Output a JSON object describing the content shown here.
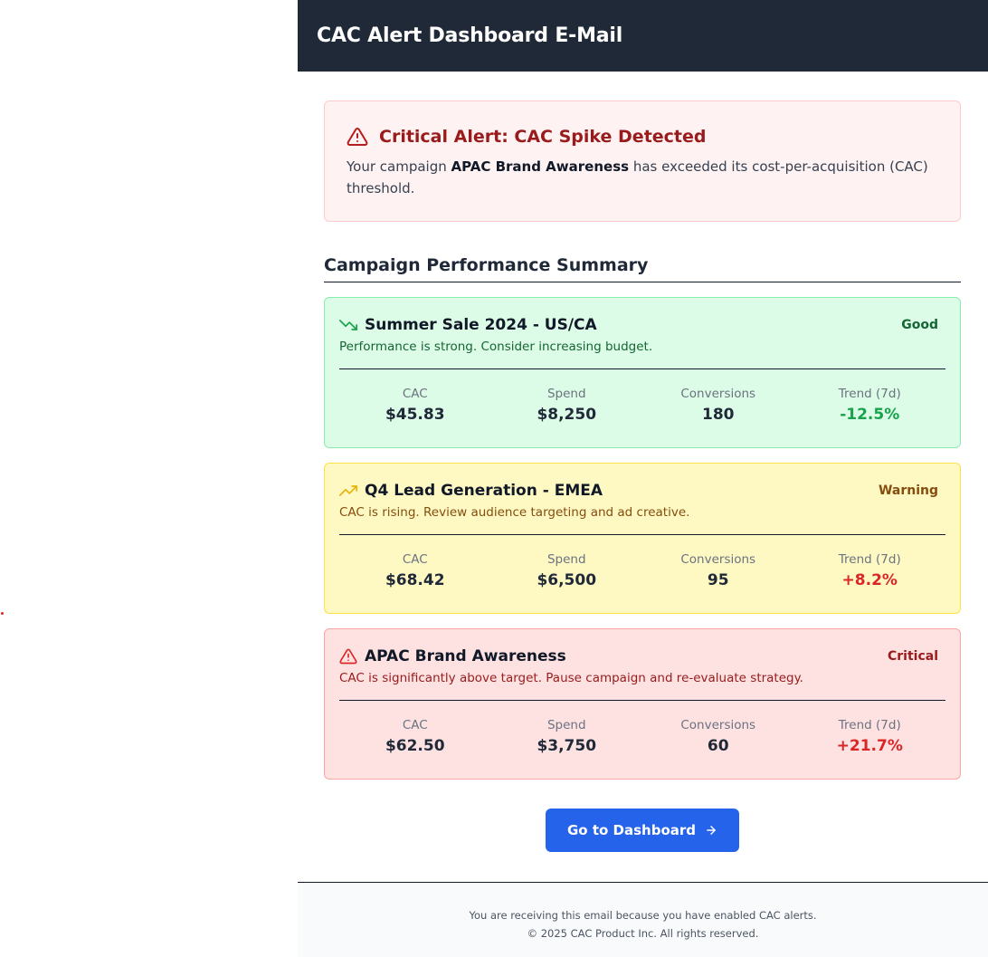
{
  "header": {
    "title": "CAC Alert Dashboard E-Mail"
  },
  "alert": {
    "title": "Critical Alert: CAC Spike Detected",
    "body_prefix": "Your campaign ",
    "campaign": "APAC Brand Awareness",
    "body_suffix": " has exceeded its cost-per-acquisition (CAC) threshold.",
    "icon": "warning-triangle-icon",
    "color": "#991b1b"
  },
  "summary": {
    "title": "Campaign Performance Summary"
  },
  "metric_labels": {
    "cac": "CAC",
    "spend": "Spend",
    "conversions": "Conversions",
    "trend": "Trend (7d)"
  },
  "campaigns": [
    {
      "name": "Summer Sale 2024 - US/CA",
      "status": "Good",
      "description": "Performance is strong. Consider increasing budget.",
      "icon": "trending-down-icon",
      "cac": "$45.83",
      "spend": "$8,250",
      "conversions": "180",
      "trend": "-12.5%",
      "color": "#16a34a"
    },
    {
      "name": "Q4 Lead Generation - EMEA",
      "status": "Warning",
      "description": "CAC is rising. Review audience targeting and ad creative.",
      "icon": "trending-up-icon",
      "cac": "$68.42",
      "spend": "$6,500",
      "conversions": "95",
      "trend": "+8.2%",
      "color": "#eab308"
    },
    {
      "name": "APAC Brand Awareness",
      "status": "Critical",
      "description": "CAC is significantly above target. Pause campaign and re-evaluate strategy.",
      "icon": "warning-triangle-icon",
      "cac": "$62.50",
      "spend": "$3,750",
      "conversions": "60",
      "trend": "+21.7%",
      "color": "#dc2626"
    }
  ],
  "cta": {
    "label": "Go to Dashboard",
    "icon": "arrow-right-icon",
    "color": "#2563eb"
  },
  "footer": {
    "line1": "You are receiving this email because you have enabled CAC alerts.",
    "line2": "© 2025 CAC Product Inc. All rights reserved."
  }
}
